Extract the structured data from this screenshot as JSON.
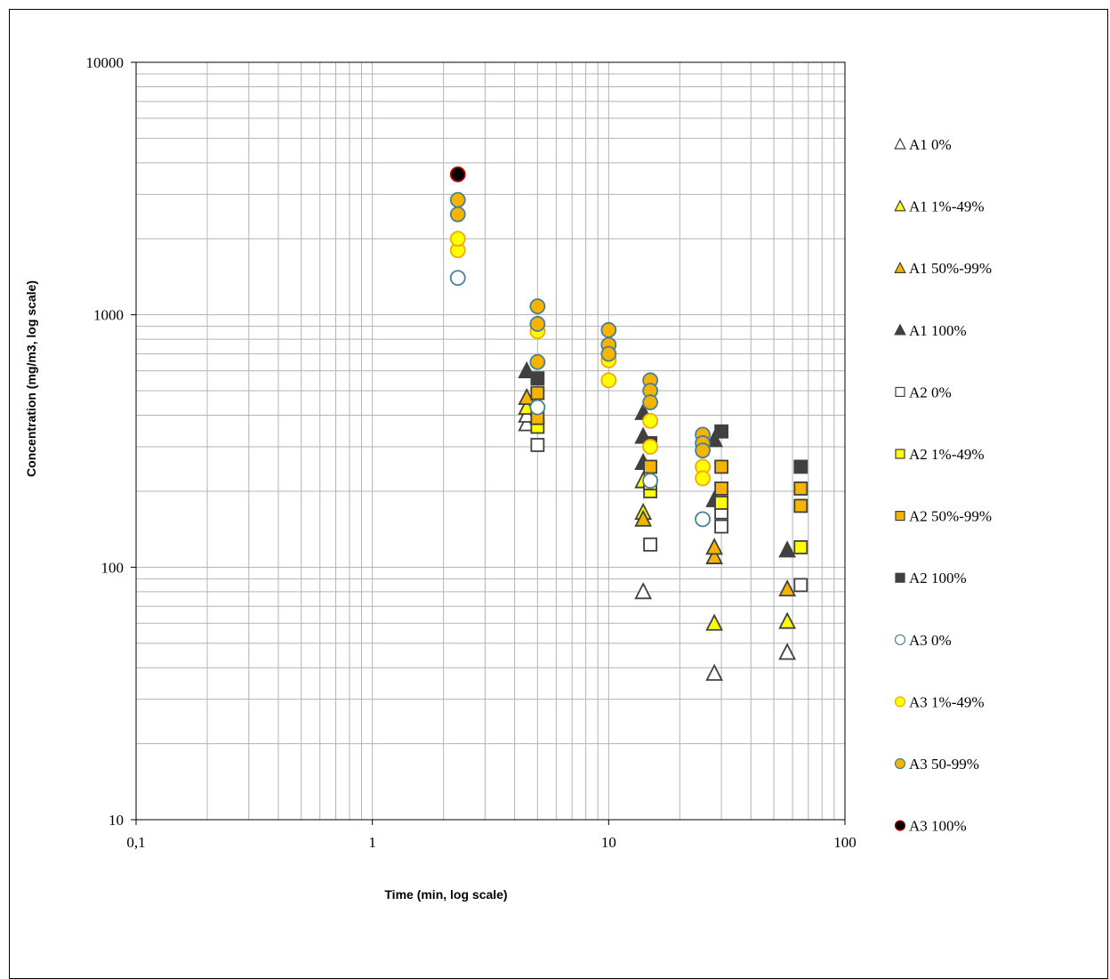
{
  "chart_data": {
    "type": "scatter",
    "title": "",
    "xlabel": "Time  (min, log scale)",
    "ylabel": "Concentration (mg/m3, log scale)",
    "xscale": "log",
    "yscale": "log",
    "xlim": [
      0.1,
      100
    ],
    "ylim": [
      10,
      10000
    ],
    "grid": true,
    "legend_position": "right",
    "x_tick_labels": [
      "0,1",
      "1",
      "10",
      "100"
    ],
    "y_tick_labels": [
      "10",
      "100",
      "1000",
      "10000"
    ],
    "series": [
      {
        "name": "A1 0%",
        "marker": "triangle",
        "fill": "#ffffff",
        "stroke": "#404040",
        "points": [
          [
            4.5,
            370
          ],
          [
            4.5,
            400
          ],
          [
            14,
            80
          ],
          [
            28,
            38
          ],
          [
            57,
            46
          ]
        ]
      },
      {
        "name": "A1 1%-49%",
        "marker": "triangle",
        "fill": "#ffff00",
        "stroke": "#404040",
        "points": [
          [
            4.5,
            430
          ],
          [
            14,
            165
          ],
          [
            14,
            220
          ],
          [
            28,
            60
          ],
          [
            57,
            61
          ]
        ]
      },
      {
        "name": "A1 50%-99%",
        "marker": "triangle",
        "fill": "#f5b400",
        "stroke": "#404040",
        "points": [
          [
            4.5,
            470
          ],
          [
            14,
            155
          ],
          [
            28,
            110
          ],
          [
            28,
            120
          ],
          [
            57,
            82
          ]
        ]
      },
      {
        "name": "A1 100%",
        "marker": "triangle",
        "fill": "#404040",
        "stroke": "#404040",
        "points": [
          [
            4.5,
            600
          ],
          [
            14,
            260
          ],
          [
            14,
            330
          ],
          [
            14,
            410
          ],
          [
            28,
            185
          ],
          [
            28,
            320
          ],
          [
            57,
            117
          ]
        ]
      },
      {
        "name": "A2 0%",
        "marker": "square",
        "fill": "#ffffff",
        "stroke": "#404040",
        "points": [
          [
            5,
            305
          ],
          [
            15,
            123
          ],
          [
            30,
            145
          ],
          [
            30,
            165
          ],
          [
            65,
            85
          ]
        ]
      },
      {
        "name": "A2 1%-49%",
        "marker": "square",
        "fill": "#ffff00",
        "stroke": "#404040",
        "points": [
          [
            5,
            360
          ],
          [
            15,
            200
          ],
          [
            15,
            215
          ],
          [
            30,
            180
          ],
          [
            65,
            120
          ]
        ]
      },
      {
        "name": "A2 50%-99%",
        "marker": "square",
        "fill": "#f5b400",
        "stroke": "#404040",
        "points": [
          [
            5,
            490
          ],
          [
            5,
            390
          ],
          [
            15,
            250
          ],
          [
            30,
            205
          ],
          [
            30,
            250
          ],
          [
            65,
            175
          ],
          [
            65,
            205
          ]
        ]
      },
      {
        "name": "A2 100%",
        "marker": "square",
        "fill": "#404040",
        "stroke": "#404040",
        "points": [
          [
            5,
            560
          ],
          [
            15,
            310
          ],
          [
            30,
            345
          ],
          [
            65,
            250
          ]
        ]
      },
      {
        "name": "A3 0%",
        "marker": "circle",
        "fill": "#ffffff",
        "stroke": "#4a7f9a",
        "points": [
          [
            2.3,
            1400
          ],
          [
            5,
            430
          ],
          [
            15,
            220
          ],
          [
            25,
            155
          ]
        ]
      },
      {
        "name": "A3 1%-49%",
        "marker": "circle",
        "fill": "#ffff00",
        "stroke": "#f5a800",
        "points": [
          [
            2.3,
            1800
          ],
          [
            2.3,
            2000
          ],
          [
            5,
            860
          ],
          [
            10,
            550
          ],
          [
            10,
            660
          ],
          [
            15,
            380
          ],
          [
            15,
            300
          ],
          [
            25,
            250
          ],
          [
            25,
            225
          ]
        ]
      },
      {
        "name": "A3 50-99%",
        "marker": "circle",
        "fill": "#f5b400",
        "stroke": "#4a7f9a",
        "points": [
          [
            2.3,
            2500
          ],
          [
            2.3,
            2850
          ],
          [
            5,
            1080
          ],
          [
            5,
            920
          ],
          [
            5,
            650
          ],
          [
            10,
            870
          ],
          [
            10,
            760
          ],
          [
            10,
            700
          ],
          [
            15,
            550
          ],
          [
            15,
            500
          ],
          [
            15,
            450
          ],
          [
            25,
            335
          ],
          [
            25,
            310
          ],
          [
            25,
            290
          ]
        ]
      },
      {
        "name": "A3 100%",
        "marker": "circle",
        "fill": "#000000",
        "stroke": "#c00000",
        "points": [
          [
            2.3,
            3600
          ]
        ]
      }
    ]
  }
}
